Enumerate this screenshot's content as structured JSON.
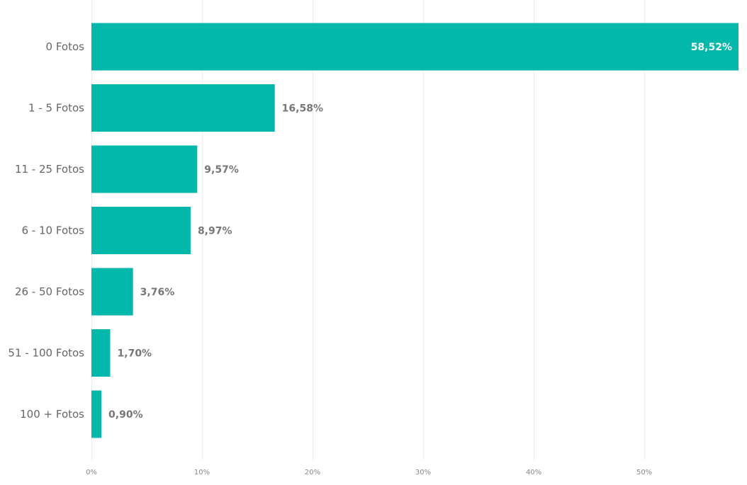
{
  "chart_data": {
    "type": "bar",
    "orientation": "horizontal",
    "categories": [
      "0 Fotos",
      "1 - 5 Fotos",
      "11 - 25 Fotos",
      "6 - 10 Fotos",
      "26 - 50 Fotos",
      "51 - 100 Fotos",
      "100 + Fotos"
    ],
    "values": [
      58.52,
      16.58,
      9.57,
      8.97,
      3.76,
      1.7,
      0.9
    ],
    "value_labels": [
      "58,52%",
      "16,58%",
      "9,57%",
      "8,97%",
      "3,76%",
      "1,70%",
      "0,90%"
    ],
    "x_ticks": [
      0,
      10,
      20,
      30,
      40,
      50
    ],
    "x_tick_labels": [
      "0%",
      "10%",
      "20%",
      "30%",
      "40%",
      "50%"
    ],
    "xlim": [
      0,
      58.52
    ],
    "title": "",
    "xlabel": "",
    "ylabel": "",
    "grid": true,
    "legend": "none",
    "colors": {
      "bar": "#01B8AA",
      "value_label_outside": "#777777",
      "value_label_inside": "#ffffff"
    }
  }
}
